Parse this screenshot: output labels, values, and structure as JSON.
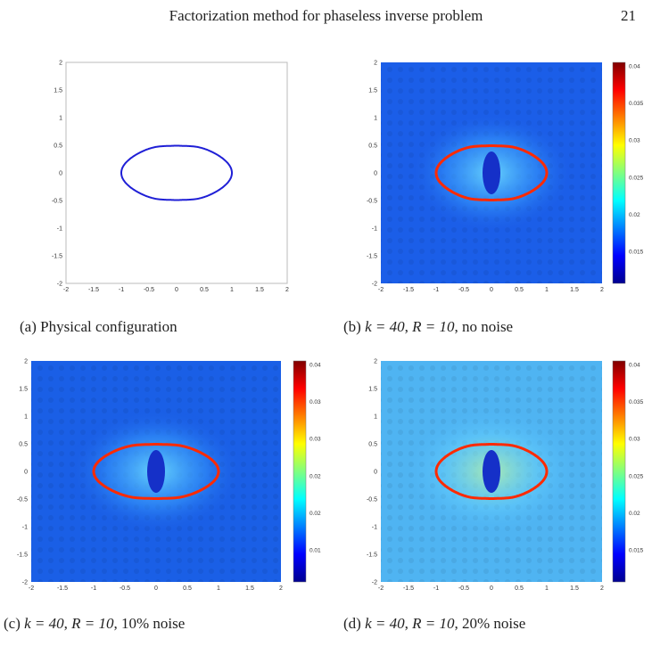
{
  "header": {
    "running_title": "Factorization method for phaseless inverse problem",
    "page_number": "21"
  },
  "panels": [
    {
      "id": "a",
      "caption_label": "(a)",
      "caption_text": "Physical configuration",
      "axis_ticks": [
        "-2",
        "-1.5",
        "-1",
        "-0.5",
        "0",
        "0.5",
        "1",
        "1.5",
        "2"
      ],
      "curve_color": "#1f1fd6"
    },
    {
      "id": "b",
      "caption_label": "(b)",
      "caption_k": "k = 40",
      "caption_R": "R = 10",
      "caption_noise": "no noise",
      "axis_ticks": [
        "-2",
        "-1.5",
        "-1",
        "-0.5",
        "0",
        "0.5",
        "1",
        "1.5",
        "2"
      ],
      "colorbar_ticks": [
        "0.04",
        "0.035",
        "0.03",
        "0.025",
        "0.02",
        "0.015"
      ]
    },
    {
      "id": "c",
      "caption_label": "(c)",
      "caption_k": "k = 40",
      "caption_R": "R = 10",
      "caption_noise": "10% noise",
      "axis_ticks": [
        "-2",
        "-1.5",
        "-1",
        "-0.5",
        "0",
        "0.5",
        "1",
        "1.5",
        "2"
      ],
      "colorbar_ticks": [
        "0.04",
        "0.035",
        "0.03",
        "0.025",
        "0.02",
        "0.015"
      ]
    },
    {
      "id": "d",
      "caption_label": "(d)",
      "caption_k": "k = 40",
      "caption_R": "R = 10",
      "caption_noise": "20% noise",
      "axis_ticks": [
        "-2",
        "-1.5",
        "-1",
        "-0.5",
        "0",
        "0.5",
        "1",
        "1.5",
        "2"
      ],
      "colorbar_ticks": [
        "0.04",
        "0.035",
        "0.03",
        "0.025",
        "0.02",
        "0.015"
      ]
    }
  ],
  "colormap": [
    "#00008f",
    "#0000ff",
    "#0080ff",
    "#00ffff",
    "#80ff80",
    "#ffff00",
    "#ff8000",
    "#ff0000",
    "#800000"
  ]
}
